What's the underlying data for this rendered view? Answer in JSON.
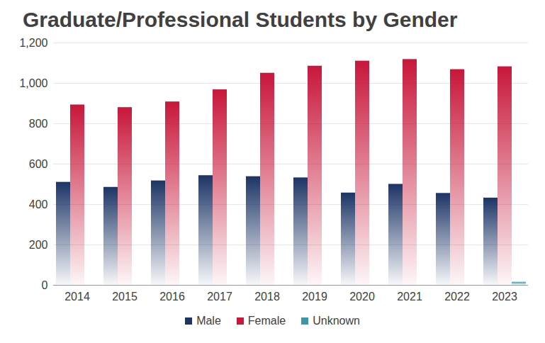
{
  "chart_data": {
    "type": "bar",
    "title": "Graduate/Professional Students by Gender",
    "categories": [
      "2014",
      "2015",
      "2016",
      "2017",
      "2018",
      "2019",
      "2020",
      "2021",
      "2022",
      "2023"
    ],
    "series": [
      {
        "name": "Male",
        "color": "#1c3466",
        "values": [
          510,
          485,
          517,
          543,
          538,
          532,
          457,
          500,
          455,
          432
        ]
      },
      {
        "name": "Female",
        "color": "#c8173a",
        "values": [
          893,
          880,
          908,
          968,
          1050,
          1085,
          1110,
          1118,
          1068,
          1082
        ]
      },
      {
        "name": "Unknown",
        "color": "#3b97a8",
        "values": [
          0,
          0,
          0,
          0,
          0,
          0,
          0,
          0,
          0,
          15
        ]
      }
    ],
    "ylim": [
      0,
      1200
    ],
    "yticks": [
      0,
      200,
      400,
      600,
      800,
      {
        "value": 1000,
        "label": "1,000"
      },
      {
        "value": 1200,
        "label": "1,200"
      }
    ],
    "grid": true,
    "legend": "bottom"
  }
}
